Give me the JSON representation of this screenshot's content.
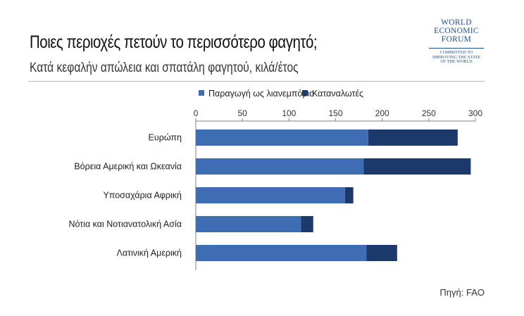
{
  "header": {
    "title": "Ποιες περιοχές πετούν το περισσότερο φαγητό;",
    "subtitle": "Κατά κεφαλήν απώλεια και σπατάλη φαγητού, κιλά/έτος"
  },
  "logo": {
    "lines": [
      "WORLD",
      "ECONOMIC",
      "FORUM"
    ],
    "tagline": [
      "COMMITTED TO",
      "IMPROVING THE STATE",
      "OF THE WORLD"
    ]
  },
  "source": "Πηγή: FAO",
  "colors": {
    "series1": "#3e6db3",
    "series2": "#1b3a6b",
    "axis": "#7f7f7f"
  },
  "chart_data": {
    "type": "bar",
    "orientation": "horizontal",
    "stacked": true,
    "categories": [
      "Ευρώπη",
      "Βόρεια Αμερική και Ωκεανία",
      "Υποσαχάρια Αφρική",
      "Νότια και Νοτιανατολική Ασία",
      "Λατινική Αμερική"
    ],
    "series": [
      {
        "name": "Παραγωγή ως λιανεμπόριο",
        "values": [
          185,
          180,
          160,
          113,
          183
        ]
      },
      {
        "name": "Καταναλωτές",
        "values": [
          96,
          115,
          9,
          13,
          33
        ]
      }
    ],
    "xlim": [
      0,
      300
    ],
    "ticks": [
      0,
      50,
      100,
      150,
      200,
      250,
      300
    ],
    "axis_position": "top",
    "legend_position": "top",
    "grid": false
  }
}
